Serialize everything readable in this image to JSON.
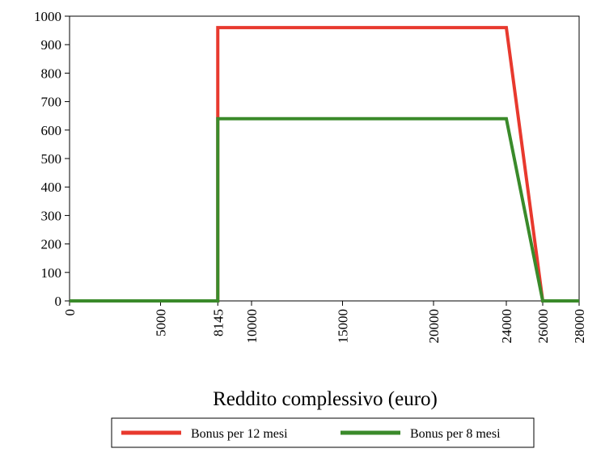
{
  "chart_data": {
    "type": "line",
    "xlabel": "Reddito complessivo (euro)",
    "ylabel": "",
    "xlim": [
      0,
      28000
    ],
    "ylim": [
      0,
      1000
    ],
    "x_ticks": [
      0,
      5000,
      8145,
      10000,
      15000,
      20000,
      24000,
      26000,
      28000
    ],
    "y_ticks": [
      0,
      100,
      200,
      300,
      400,
      500,
      600,
      700,
      800,
      900,
      1000
    ],
    "grid": false,
    "legend_position": "bottom",
    "series": [
      {
        "name": "Bonus per 12 mesi",
        "color": "#e8392e",
        "points": [
          [
            0,
            0
          ],
          [
            8145,
            0
          ],
          [
            8145,
            960
          ],
          [
            24000,
            960
          ],
          [
            26000,
            0
          ],
          [
            28000,
            0
          ]
        ]
      },
      {
        "name": "Bonus per 8 mesi",
        "color": "#3a8a2a",
        "points": [
          [
            0,
            0
          ],
          [
            8145,
            0
          ],
          [
            8145,
            640
          ],
          [
            24000,
            640
          ],
          [
            26000,
            0
          ],
          [
            28000,
            0
          ]
        ]
      }
    ]
  }
}
